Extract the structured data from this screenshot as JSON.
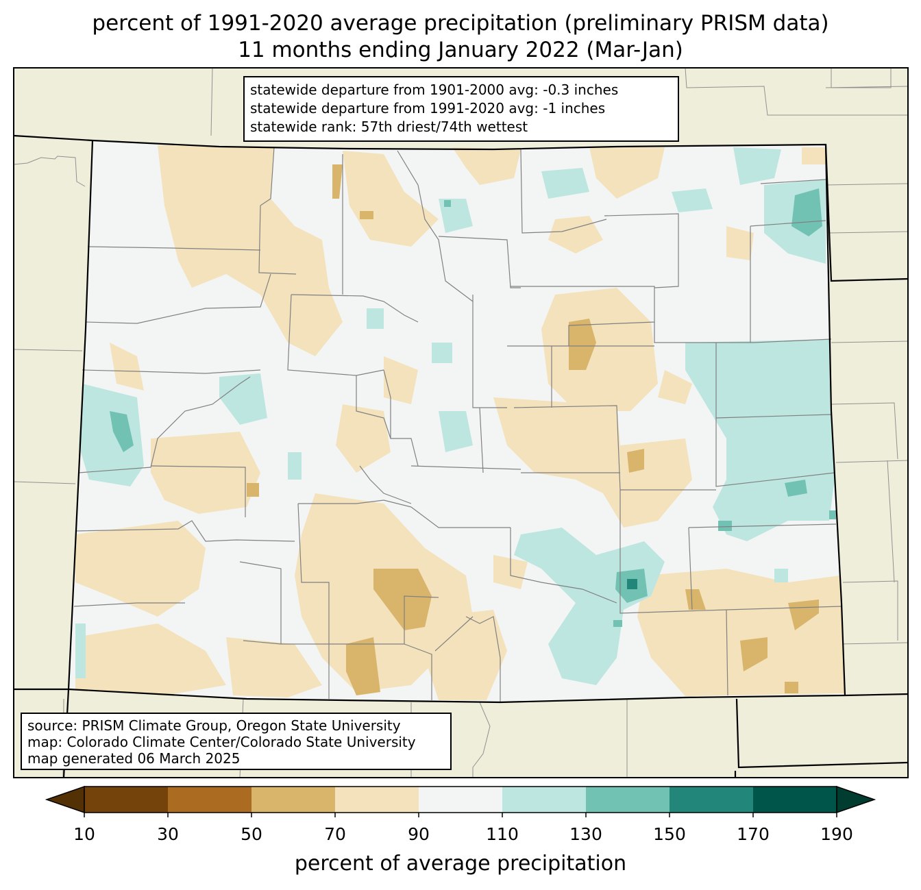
{
  "title": {
    "line1": "percent of 1991-2020 average precipitation (preliminary PRISM data)",
    "line2": "11 months ending January 2022 (Mar-Jan)"
  },
  "stats_box": {
    "line1": "statewide departure from 1901-2000 avg: -0.3 inches",
    "line2": "statewide departure from 1991-2020 avg: -1 inches",
    "line3": "statewide rank: 57th driest/74th wettest"
  },
  "source_box": {
    "line1": "source: PRISM Climate Group, Oregon State University",
    "line2": "map: Colorado Climate Center/Colorado State University",
    "line3": "map generated 06 March 2025"
  },
  "colorbar": {
    "label": "percent of average precipitation",
    "ticks": [
      "10",
      "30",
      "50",
      "70",
      "90",
      "110",
      "130",
      "150",
      "170",
      "190"
    ],
    "under_color": "#543005",
    "over_color": "#003c30",
    "colors": [
      "#74420b",
      "#ab6c22",
      "#d9b46b",
      "#f3e2bb",
      "#f3f5f4",
      "#bde6e0",
      "#72c2b4",
      "#22867b",
      "#00554a"
    ]
  },
  "map_colors": {
    "background_land": "#efeedb",
    "state_border": "#000000",
    "county_border": "#808080"
  }
}
